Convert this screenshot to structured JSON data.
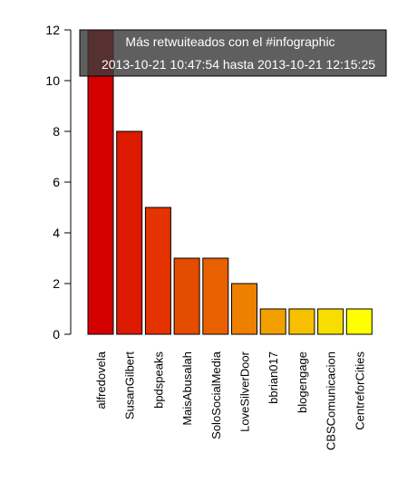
{
  "chart_data": {
    "type": "bar",
    "categories": [
      "alfredovela",
      "SusanGilbert",
      "bpdspeaks",
      "MaisAbusalah",
      "SoloSocialMedia",
      "LoveSilverDoor",
      "bbrian017",
      "blogengage",
      "CBSComunicacion",
      "CentreforCities"
    ],
    "values": [
      12,
      8,
      5,
      3,
      3,
      2,
      1,
      1,
      1,
      1
    ],
    "colors": [
      "#d40000",
      "#dc1a00",
      "#e43200",
      "#e44c00",
      "#e86000",
      "#ee8000",
      "#f2a000",
      "#f6c000",
      "#f8de00",
      "#ffff00"
    ],
    "ylim": [
      0,
      12
    ],
    "yticks": [
      0,
      2,
      4,
      6,
      8,
      10,
      12
    ],
    "legend_position": "top",
    "legend_line1": "Más retwuiteados con el  #infographic",
    "legend_line2": "2013-10-21 10:47:54  hasta  2013-10-21 12:15:25",
    "legend_bg": "#3c3c3c"
  }
}
